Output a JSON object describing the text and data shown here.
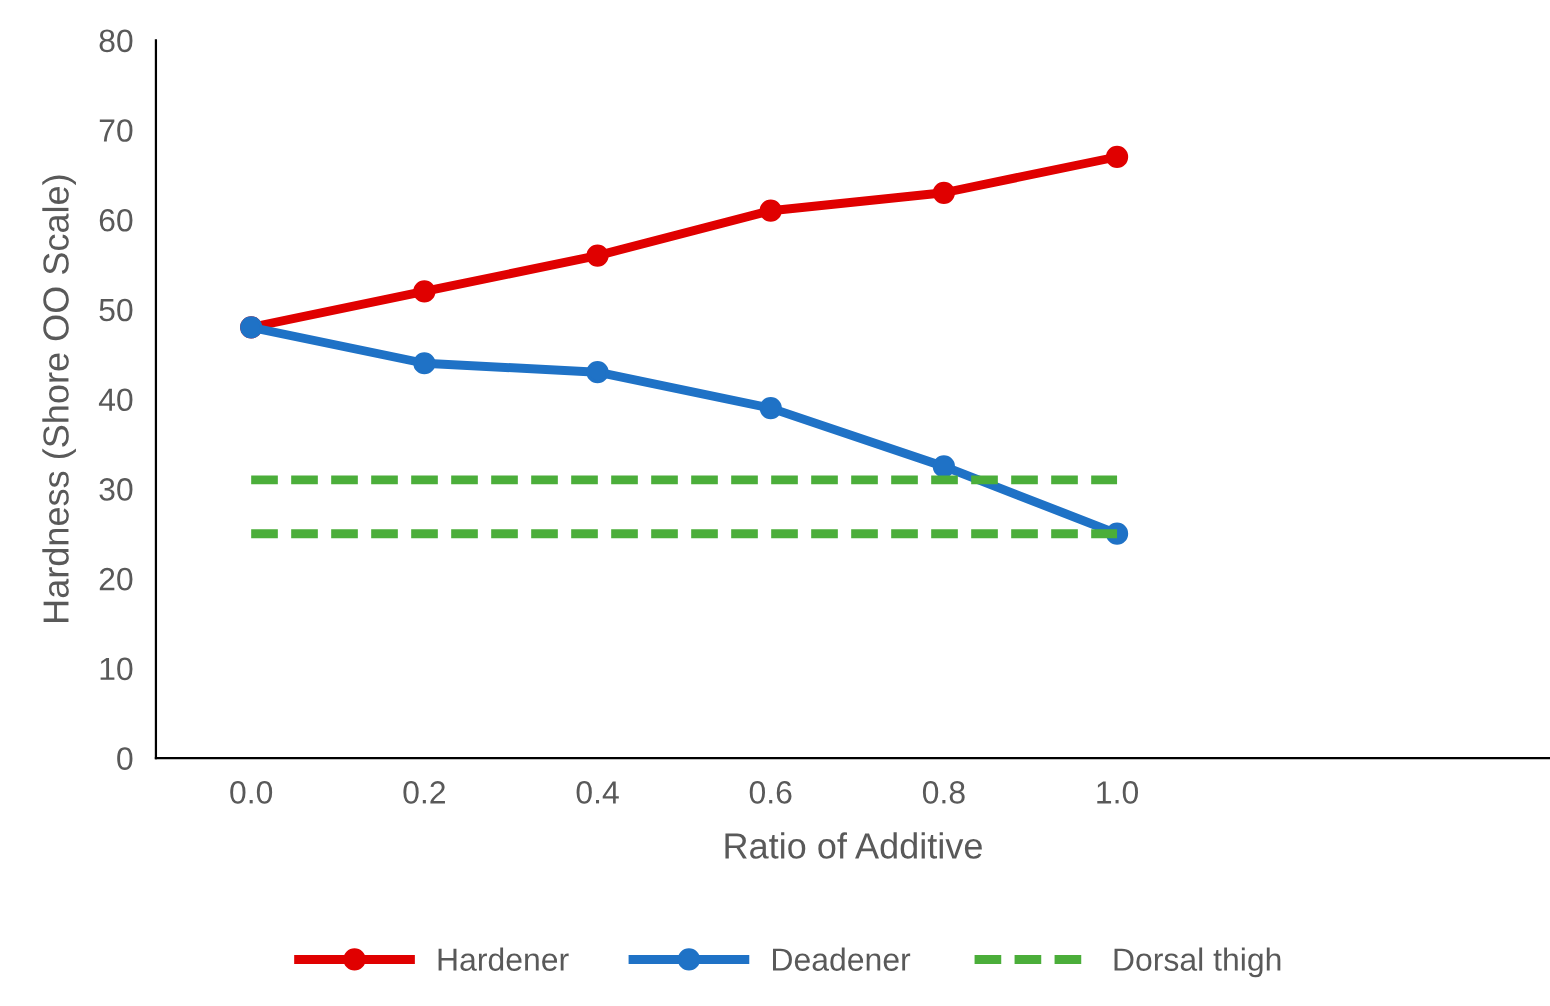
{
  "chart_data": {
    "type": "line",
    "xlabel": "Ratio of Additive",
    "ylabel": "Hardness (Shore OO Scale)",
    "x": [
      0,
      0.2,
      0.4,
      0.6,
      0.8,
      1.0
    ],
    "series": [
      {
        "name": "Hardener",
        "color": "#e00000",
        "values": [
          48,
          52,
          56,
          61,
          63,
          67
        ],
        "marker": "circle",
        "line_style": "solid"
      },
      {
        "name": "Deadener",
        "color": "#1f72c6",
        "values": [
          48,
          44,
          43,
          39,
          32.5,
          25
        ],
        "marker": "circle",
        "line_style": "solid"
      },
      {
        "name": "Dorsal thigh",
        "color": "#4bae3a",
        "values": [
          31,
          31,
          31,
          31,
          31,
          31
        ],
        "marker": "none",
        "line_style": "dashed"
      },
      {
        "color": "#4bae3a",
        "values": [
          25,
          25,
          25,
          25,
          25,
          25
        ],
        "marker": "none",
        "line_style": "dashed"
      }
    ],
    "xlim": [
      -0.11,
      1.5
    ],
    "xticks": [
      {
        "value": 0,
        "label": "0.0"
      },
      {
        "value": 0.2,
        "label": "0.2"
      },
      {
        "value": 0.4,
        "label": "0.4"
      },
      {
        "value": 0.6,
        "label": "0.6"
      },
      {
        "value": 0.8,
        "label": "0.8"
      },
      {
        "value": 1.0,
        "label": "1.0"
      }
    ],
    "ylim": [
      0,
      80
    ],
    "yticks": [
      0,
      10,
      20,
      30,
      40,
      50,
      60,
      70,
      80
    ],
    "grid": false,
    "legend": "bottom"
  }
}
